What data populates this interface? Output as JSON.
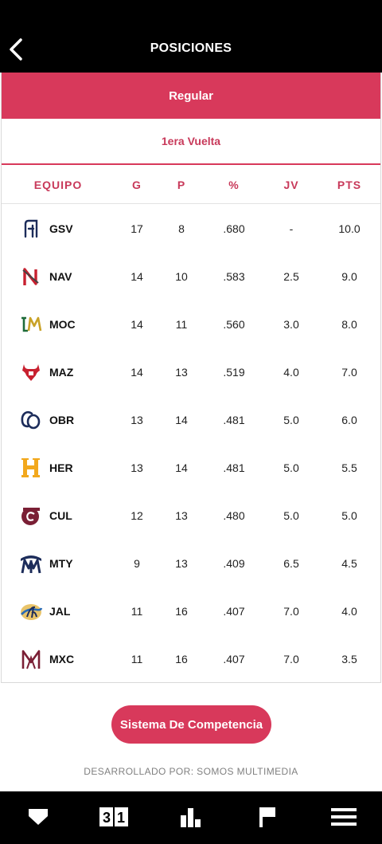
{
  "header": {
    "title": "POSICIONES"
  },
  "tabs": {
    "primary": "Regular",
    "secondary": "1era Vuelta"
  },
  "table": {
    "columns": [
      "EQUIPO",
      "G",
      "P",
      "%",
      "JV",
      "PTS"
    ],
    "rows": [
      {
        "team": "GSV",
        "g": "17",
        "p": "8",
        "pct": ".680",
        "jv": "-",
        "pts": "10.0"
      },
      {
        "team": "NAV",
        "g": "14",
        "p": "10",
        "pct": ".583",
        "jv": "2.5",
        "pts": "9.0"
      },
      {
        "team": "MOC",
        "g": "14",
        "p": "11",
        "pct": ".560",
        "jv": "3.0",
        "pts": "8.0"
      },
      {
        "team": "MAZ",
        "g": "14",
        "p": "13",
        "pct": ".519",
        "jv": "4.0",
        "pts": "7.0"
      },
      {
        "team": "OBR",
        "g": "13",
        "p": "14",
        "pct": ".481",
        "jv": "5.0",
        "pts": "6.0"
      },
      {
        "team": "HER",
        "g": "13",
        "p": "14",
        "pct": ".481",
        "jv": "5.0",
        "pts": "5.5"
      },
      {
        "team": "CUL",
        "g": "12",
        "p": "13",
        "pct": ".480",
        "jv": "5.0",
        "pts": "5.0"
      },
      {
        "team": "MTY",
        "g": "9",
        "p": "13",
        "pct": ".409",
        "jv": "6.5",
        "pts": "4.5"
      },
      {
        "team": "JAL",
        "g": "11",
        "p": "16",
        "pct": ".407",
        "jv": "7.0",
        "pts": "4.0"
      },
      {
        "team": "MXC",
        "g": "11",
        "p": "16",
        "pct": ".407",
        "jv": "7.0",
        "pts": "3.5"
      }
    ]
  },
  "competition_button": "Sistema De Competencia",
  "credit": "DESARROLLADO POR: SOMOS MULTIMEDIA",
  "colors": {
    "accent": "#d8395b",
    "bar": "#000000"
  },
  "icons": {
    "back": "chevron-left-icon",
    "nav": [
      "home-plate-icon",
      "scoreboard-icon",
      "bar-chart-icon",
      "flag-icon",
      "menu-icon"
    ]
  },
  "scoreboard_digits": [
    "3",
    "1"
  ]
}
